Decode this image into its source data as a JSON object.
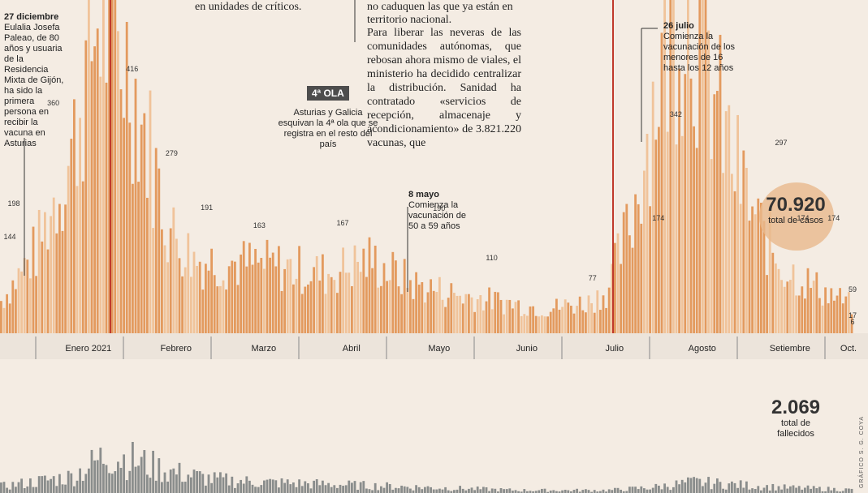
{
  "news": {
    "col1": "en unidades de críticos.",
    "col2a": "no caduquen las que ya están en",
    "col2b": "territorio nacional.",
    "col2c": "Para liberar las neveras de las comunidades autónomas, que rebosan ahora mismo de viales, el ministerio ha decidido centralizar la distribución. Sanidad ha contratado «servicios de recepción, almacenaje y acondicionamiento» de 3.821.220 vacunas, que"
  },
  "annotations": {
    "dec27_title": "27 diciembre",
    "dec27_text": "Eulalia Josefa Paleao, de 80 años y usuaria de la Residencia Mixta de Gijón, ha sido la primera persona en recibir la vacuna en Asturias",
    "wave_badge": "4ª OLA",
    "wave_text": "Asturias y Galicia esquivan la 4ª ola que se registra en el resto del país",
    "may8_title": "8 mayo",
    "may8_text": "Comienza la vacunación de 50 a 59 años",
    "jul26_title": "26 julio",
    "jul26_text": "Comienza la vacunación de los menores de 16 hasta los 12 años"
  },
  "totals": {
    "cases_value": "70.920",
    "cases_label": "total de casos",
    "deaths_value": "2.069",
    "deaths_label": "total de fallecidos"
  },
  "credit": "GRÁFICO S. G. COYA",
  "colors": {
    "bars": "#e39a5e",
    "bars_light": "#f0c39a",
    "deaths": "#8a8d8c",
    "highlight": "#c0392b"
  },
  "chart_data": {
    "type": "bar",
    "title": "",
    "x_axis": [
      "Enero 2021",
      "Febrero",
      "Marzo",
      "Abril",
      "Mayo",
      "Junio",
      "Julio",
      "Agosto",
      "Setiembre",
      "Oct."
    ],
    "labeled_points": [
      {
        "value": 144,
        "month_pos": -0.6
      },
      {
        "value": 198,
        "month_pos": -0.25
      },
      {
        "value": 360,
        "month_pos": 0.2
      },
      {
        "value": 416,
        "month_pos": 1.1
      },
      {
        "value": 279,
        "month_pos": 1.55
      },
      {
        "value": 191,
        "month_pos": 1.95
      },
      {
        "value": 163,
        "month_pos": 2.55
      },
      {
        "value": 167,
        "month_pos": 3.5
      },
      {
        "value": 190,
        "month_pos": 4.6
      },
      {
        "value": 110,
        "month_pos": 5.2
      },
      {
        "value": 77,
        "month_pos": 6.35
      },
      {
        "value": 174,
        "month_pos": 7.1
      },
      {
        "value": 342,
        "month_pos": 7.3
      },
      {
        "value": 297,
        "month_pos": 8.5
      },
      {
        "value": 174,
        "month_pos": 8.75
      },
      {
        "value": 174,
        "month_pos": 9.1
      },
      {
        "value": 59,
        "month_pos": 9.6
      },
      {
        "value": 17,
        "month_pos": 10.25
      },
      {
        "value": 6,
        "month_pos": 10.85
      }
    ],
    "daily_cases_series": {
      "name": "casos diarios",
      "smoothed_shape": [
        [
          0.0,
          30
        ],
        [
          0.5,
          120
        ],
        [
          0.9,
          260
        ],
        [
          1.2,
          460
        ],
        [
          1.5,
          400
        ],
        [
          1.8,
          260
        ],
        [
          2.0,
          150
        ],
        [
          2.3,
          105
        ],
        [
          2.8,
          100
        ],
        [
          3.3,
          95
        ],
        [
          3.8,
          85
        ],
        [
          4.3,
          105
        ],
        [
          4.8,
          70
        ],
        [
          5.3,
          55
        ],
        [
          5.8,
          45
        ],
        [
          6.3,
          35
        ],
        [
          6.8,
          45
        ],
        [
          7.0,
          60
        ],
        [
          7.3,
          170
        ],
        [
          7.6,
          380
        ],
        [
          7.9,
          480
        ],
        [
          8.1,
          400
        ],
        [
          8.4,
          260
        ],
        [
          8.7,
          160
        ],
        [
          9.0,
          95
        ],
        [
          9.4,
          65
        ],
        [
          9.8,
          40
        ],
        [
          10.2,
          20
        ],
        [
          10.6,
          12
        ],
        [
          11.0,
          6
        ]
      ]
    },
    "deaths_series": {
      "name": "fallecidos",
      "values_shape": [
        [
          0.0,
          2
        ],
        [
          0.9,
          6
        ],
        [
          1.3,
          14
        ],
        [
          1.6,
          12
        ],
        [
          2.0,
          8
        ],
        [
          2.5,
          5
        ],
        [
          3.0,
          4
        ],
        [
          4.0,
          3
        ],
        [
          5.0,
          2
        ],
        [
          6.0,
          1
        ],
        [
          7.0,
          1
        ],
        [
          7.5,
          2
        ],
        [
          8.0,
          4
        ],
        [
          8.5,
          3
        ],
        [
          9.0,
          2
        ],
        [
          10.0,
          1
        ],
        [
          11.0,
          1
        ]
      ]
    },
    "markers": [
      "27 diciembre",
      "26 julio"
    ],
    "grid": false
  }
}
